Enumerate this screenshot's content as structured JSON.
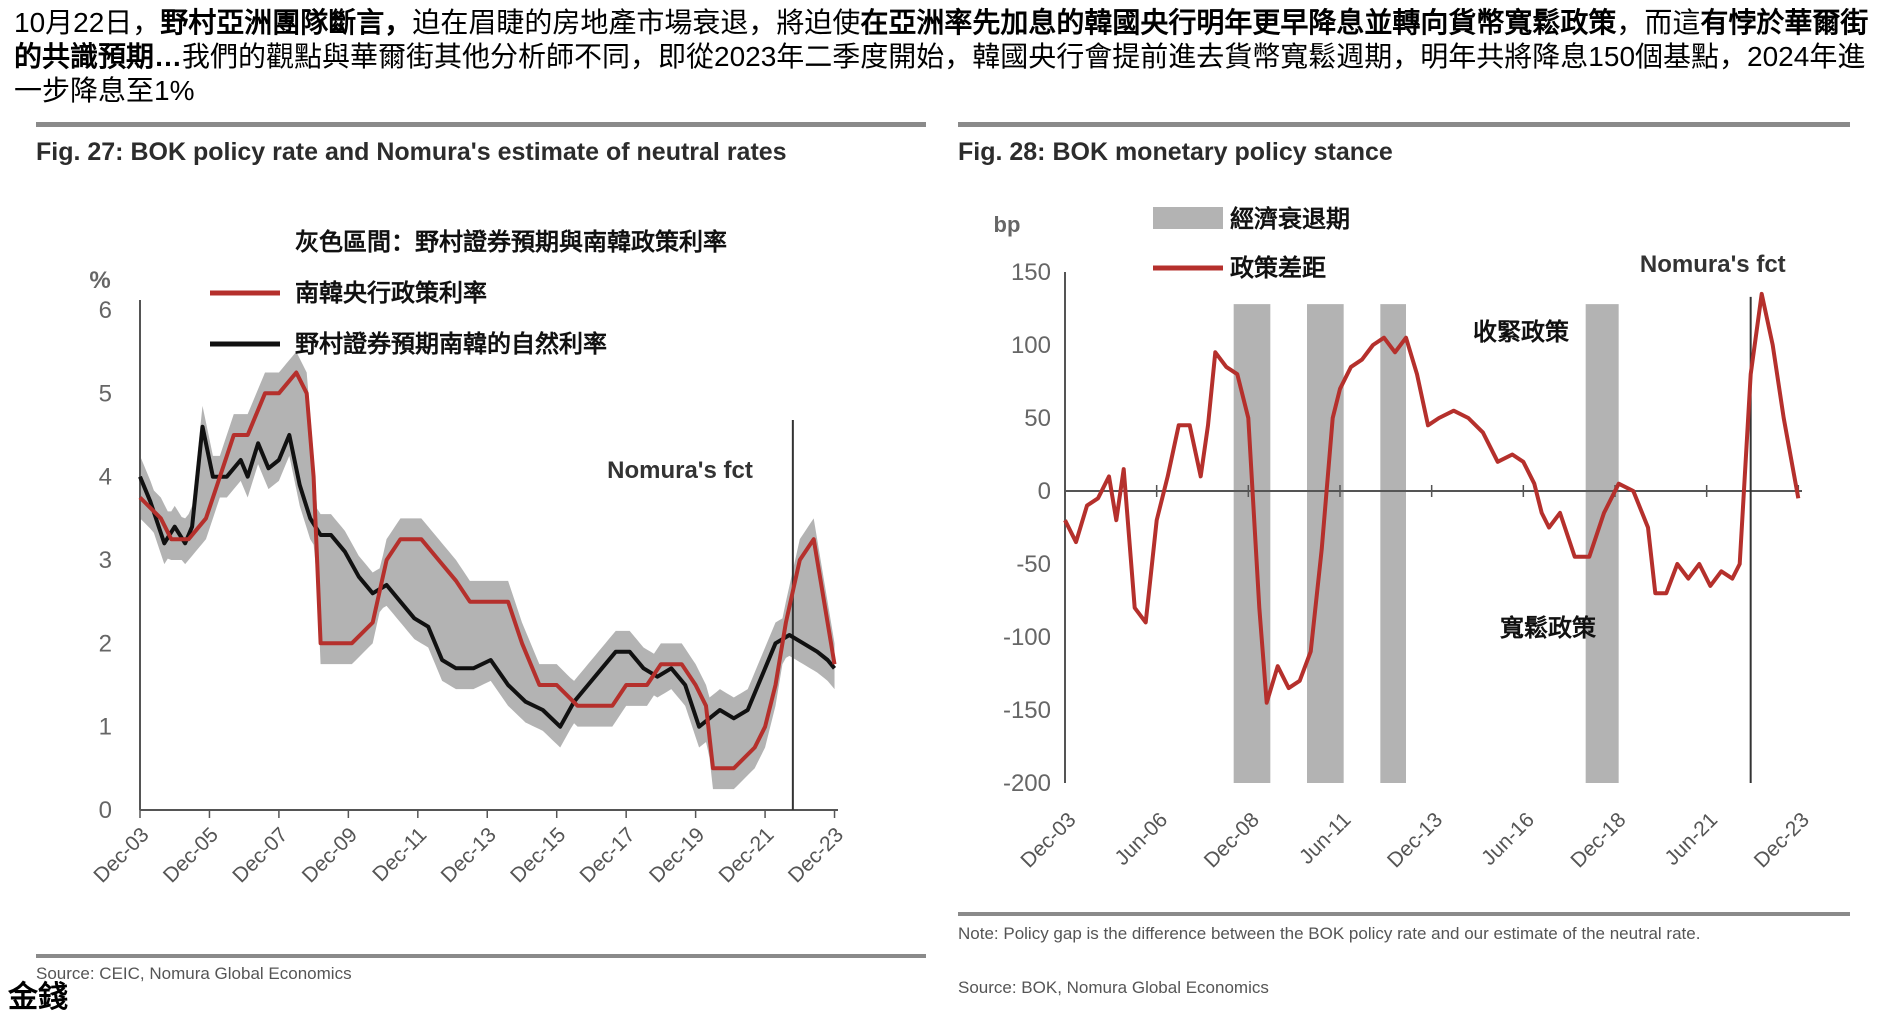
{
  "header": {
    "s1": "10月22日，",
    "s2": "野村亞洲團隊斷言，",
    "s3": "迫在眉睫的房地產市場衰退，將迫使",
    "s4": "在亞洲率先加息的韓國央行明年更早降息並轉向貨幣寬鬆政策",
    "s5": "，而這",
    "s6": "有悖於華爾街的共識預期…",
    "s7": "我們的觀點與華爾街其他分析師不同，即從2023年二季度開始，韓國央行會提前進去貨幣寬鬆週期，明年共將降息150個基點，2024年進一步降息至1%"
  },
  "colors": {
    "red": "#b5302c",
    "black": "#111111",
    "band": "#b3b3b3",
    "axis": "#555555"
  },
  "left": {
    "title": "Fig. 27: BOK policy rate and Nomura's estimate of neutral rates",
    "source": "Source: CEIC, Nomura Global Economics"
  },
  "right": {
    "title": "Fig. 28: BOK monetary policy stance",
    "note": "Note: Policy gap is the difference between the BOK policy rate and our estimate of the neutral rate.",
    "source": "Source: BOK, Nomura Global Economics"
  },
  "logo": "金錢",
  "chart_data": [
    {
      "type": "line",
      "title": "Fig. 27: BOK policy rate and Nomura's estimate of neutral rates",
      "ylabel": "%",
      "ylim": [
        0,
        6
      ],
      "yticks": [
        0,
        1,
        2,
        3,
        4,
        5,
        6
      ],
      "xlim": [
        2003.9,
        2024.0
      ],
      "xticks": [
        {
          "x": 2003.9,
          "label": "Dec-03"
        },
        {
          "x": 2005.9,
          "label": "Dec-05"
        },
        {
          "x": 2007.9,
          "label": "Dec-07"
        },
        {
          "x": 2009.9,
          "label": "Dec-09"
        },
        {
          "x": 2011.9,
          "label": "Dec-11"
        },
        {
          "x": 2013.9,
          "label": "Dec-13"
        },
        {
          "x": 2015.9,
          "label": "Dec-15"
        },
        {
          "x": 2017.9,
          "label": "Dec-17"
        },
        {
          "x": 2019.9,
          "label": "Dec-19"
        },
        {
          "x": 2021.9,
          "label": "Dec-21"
        },
        {
          "x": 2023.9,
          "label": "Dec-23"
        }
      ],
      "legend": [
        "灰色區間：野村證券預期與南韓政策利率",
        "南韓央行政策利率",
        "野村證券預期南韓的自然利率"
      ],
      "annotation": "Nomura's fct",
      "forecast_start": 2022.7,
      "series": [
        {
          "name": "南韓央行政策利率",
          "x": [
            2003.9,
            2004.5,
            2004.8,
            2005.3,
            2005.8,
            2006.2,
            2006.6,
            2007.0,
            2007.5,
            2007.9,
            2008.4,
            2008.7,
            2008.9,
            2009.1,
            2010.0,
            2010.6,
            2011.0,
            2011.4,
            2012.0,
            2012.5,
            2013.0,
            2013.4,
            2014.5,
            2014.9,
            2015.4,
            2015.9,
            2016.5,
            2017.5,
            2017.9,
            2018.5,
            2018.9,
            2019.5,
            2019.9,
            2020.2,
            2020.4,
            2021.0,
            2021.6,
            2021.9,
            2022.2,
            2022.5,
            2022.9,
            2023.3,
            2023.6,
            2023.9
          ],
          "values": [
            3.75,
            3.5,
            3.25,
            3.25,
            3.5,
            4.0,
            4.5,
            4.5,
            5.0,
            5.0,
            5.25,
            5.0,
            4.0,
            2.0,
            2.0,
            2.25,
            3.0,
            3.25,
            3.25,
            3.0,
            2.75,
            2.5,
            2.5,
            2.0,
            1.5,
            1.5,
            1.25,
            1.25,
            1.5,
            1.5,
            1.75,
            1.75,
            1.5,
            1.25,
            0.5,
            0.5,
            0.75,
            1.0,
            1.5,
            2.25,
            3.0,
            3.25,
            2.5,
            1.75
          ]
        },
        {
          "name": "野村證券預期南韓的自然利率",
          "x": [
            2003.9,
            2004.2,
            2004.6,
            2004.9,
            2005.2,
            2005.4,
            2005.7,
            2006.0,
            2006.4,
            2006.8,
            2007.0,
            2007.3,
            2007.6,
            2007.9,
            2008.2,
            2008.5,
            2008.8,
            2009.1,
            2009.4,
            2009.8,
            2010.2,
            2010.6,
            2011.0,
            2011.4,
            2011.8,
            2012.2,
            2012.6,
            2013.0,
            2013.5,
            2014.0,
            2014.5,
            2015.0,
            2015.5,
            2016.0,
            2016.4,
            2016.8,
            2017.2,
            2017.6,
            2018.0,
            2018.4,
            2018.8,
            2019.2,
            2019.6,
            2020.0,
            2020.3,
            2020.6,
            2021.0,
            2021.4,
            2021.8,
            2022.2,
            2022.6,
            2023.0,
            2023.4,
            2023.7,
            2023.9
          ],
          "values": [
            4.0,
            3.7,
            3.2,
            3.4,
            3.2,
            3.4,
            4.6,
            4.0,
            4.0,
            4.2,
            4.0,
            4.4,
            4.1,
            4.2,
            4.5,
            3.9,
            3.5,
            3.3,
            3.3,
            3.1,
            2.8,
            2.6,
            2.7,
            2.5,
            2.3,
            2.2,
            1.8,
            1.7,
            1.7,
            1.8,
            1.5,
            1.3,
            1.2,
            1.0,
            1.3,
            1.5,
            1.7,
            1.9,
            1.9,
            1.7,
            1.6,
            1.7,
            1.5,
            1.0,
            1.1,
            1.2,
            1.1,
            1.2,
            1.6,
            2.0,
            2.1,
            2.0,
            1.9,
            1.8,
            1.7
          ]
        }
      ]
    },
    {
      "type": "line",
      "title": "Fig. 28: BOK monetary policy stance",
      "ylabel": "bp",
      "ylim": [
        -200,
        150
      ],
      "yticks": [
        -200,
        -150,
        -100,
        -50,
        0,
        50,
        100,
        150
      ],
      "xlim": [
        2003.9,
        2024.0
      ],
      "xticks": [
        {
          "x": 2003.9,
          "label": "Dec-03"
        },
        {
          "x": 2006.4,
          "label": "Jun-06"
        },
        {
          "x": 2008.9,
          "label": "Dec-08"
        },
        {
          "x": 2011.4,
          "label": "Jun-11"
        },
        {
          "x": 2013.9,
          "label": "Dec-13"
        },
        {
          "x": 2016.4,
          "label": "Jun-16"
        },
        {
          "x": 2018.9,
          "label": "Dec-18"
        },
        {
          "x": 2021.4,
          "label": "Jun-21"
        },
        {
          "x": 2023.9,
          "label": "Dec-23"
        }
      ],
      "legend": [
        "經濟衰退期",
        "政策差距"
      ],
      "annotations": [
        "Nomura's fct",
        "收緊政策",
        "寬鬆政策"
      ],
      "forecast_start": 2022.6,
      "recessions": [
        [
          2008.5,
          2009.5
        ],
        [
          2010.5,
          2011.5
        ],
        [
          2012.5,
          2013.2
        ],
        [
          2018.1,
          2019.0
        ]
      ],
      "series": [
        {
          "name": "政策差距",
          "x": [
            2003.9,
            2004.2,
            2004.5,
            2004.8,
            2005.1,
            2005.3,
            2005.5,
            2005.8,
            2006.1,
            2006.4,
            2006.7,
            2007.0,
            2007.3,
            2007.6,
            2007.8,
            2008.0,
            2008.3,
            2008.6,
            2008.9,
            2009.2,
            2009.4,
            2009.7,
            2010.0,
            2010.3,
            2010.6,
            2010.9,
            2011.2,
            2011.4,
            2011.7,
            2012.0,
            2012.3,
            2012.6,
            2012.9,
            2013.2,
            2013.5,
            2013.8,
            2014.1,
            2014.5,
            2014.9,
            2015.3,
            2015.7,
            2016.1,
            2016.4,
            2016.7,
            2016.9,
            2017.1,
            2017.4,
            2017.8,
            2018.2,
            2018.6,
            2019.0,
            2019.4,
            2019.8,
            2020.0,
            2020.3,
            2020.6,
            2020.9,
            2021.2,
            2021.5,
            2021.8,
            2022.1,
            2022.3,
            2022.6,
            2022.9,
            2023.2,
            2023.5,
            2023.9
          ],
          "values": [
            -20,
            -35,
            -10,
            -5,
            10,
            -20,
            15,
            -80,
            -90,
            -20,
            10,
            45,
            45,
            10,
            45,
            95,
            85,
            80,
            50,
            -80,
            -145,
            -120,
            -135,
            -130,
            -110,
            -40,
            50,
            70,
            85,
            90,
            100,
            105,
            95,
            105,
            80,
            45,
            50,
            55,
            50,
            40,
            20,
            25,
            20,
            5,
            -15,
            -25,
            -15,
            -45,
            -45,
            -15,
            5,
            0,
            -25,
            -70,
            -70,
            -50,
            -60,
            -50,
            -65,
            -55,
            -60,
            -50,
            80,
            135,
            100,
            50,
            -5
          ]
        }
      ]
    }
  ]
}
